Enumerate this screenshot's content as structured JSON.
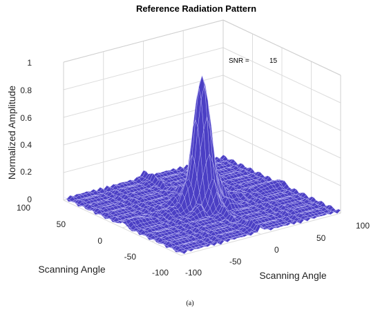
{
  "chart_data": {
    "type": "surface",
    "title": "Reference Radiation Pattern",
    "zlabel": "Normalized Amplitude",
    "xlabel": "Scanning Angle",
    "ylabel": "Scanning Angle",
    "zticks": [
      "0",
      "0.2",
      "0.4",
      "0.6",
      "0.8",
      "1"
    ],
    "xticks": [
      "100",
      "50",
      "0",
      "-50",
      "-100"
    ],
    "yticks": [
      "-100",
      "-50",
      "0",
      "50",
      "100"
    ],
    "xlim": [
      -100,
      100
    ],
    "ylim": [
      -100,
      100
    ],
    "zlim": [
      0,
      1
    ],
    "peak": {
      "x": 0,
      "y": 0,
      "z": 0.95
    },
    "surface_color": "#4b3fc4",
    "grid": true,
    "annotation": {
      "label": "SNR =",
      "value": "15"
    }
  },
  "caption": "(a)"
}
